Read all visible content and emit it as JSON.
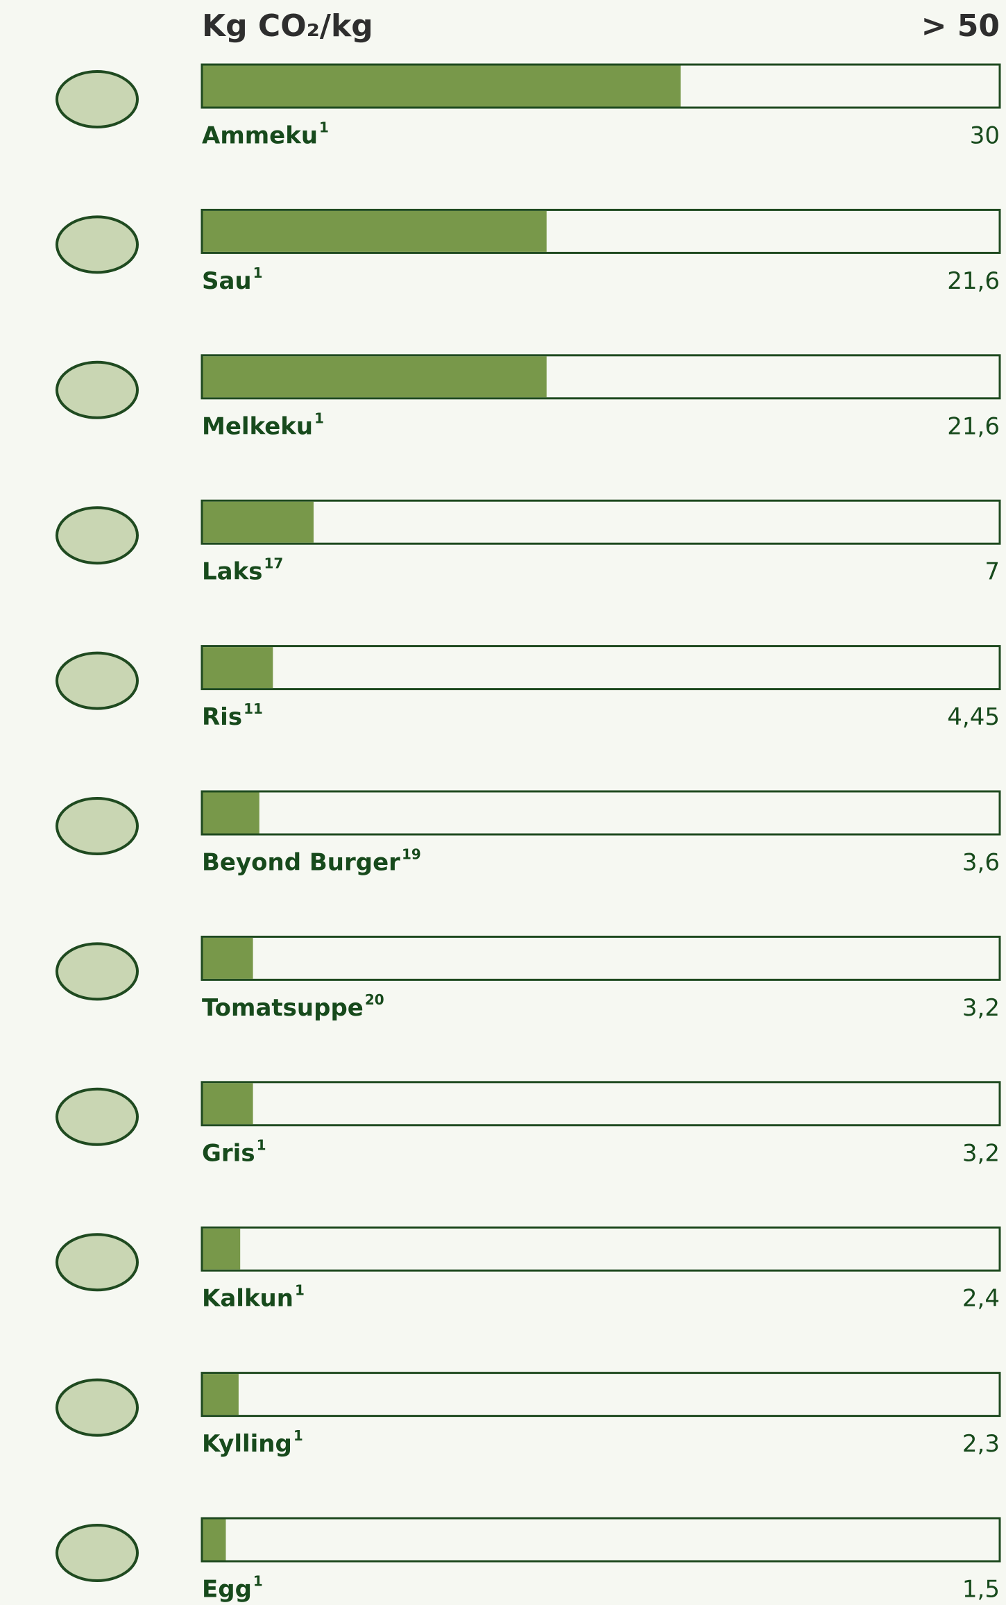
{
  "chart_data": {
    "type": "bar",
    "orientation": "horizontal",
    "title": "Kg CO₂/kg",
    "categories": [
      "Ammeku",
      "Sau",
      "Melkeku",
      "Laks",
      "Ris",
      "Beyond Burger",
      "Tomatsuppe",
      "Gris",
      "Kalkun",
      "Kylling",
      "Egg"
    ],
    "footnotes": [
      "1",
      "1",
      "1",
      "17",
      "11",
      "19",
      "20",
      "1",
      "1",
      "1",
      "1"
    ],
    "values": [
      30,
      21.6,
      21.6,
      7,
      4.45,
      3.6,
      3.2,
      3.2,
      2.4,
      2.3,
      1.5
    ],
    "value_labels": [
      "30",
      "21,6",
      "21,6",
      "7",
      "4,45",
      "3,6",
      "3,2",
      "3,2",
      "2,4",
      "2,3",
      "1,5"
    ],
    "color": "#78984a",
    "xlim": [
      0,
      50
    ],
    "xticks": [
      {
        "value": 50,
        "label": "> 50"
      }
    ],
    "grid": false
  }
}
